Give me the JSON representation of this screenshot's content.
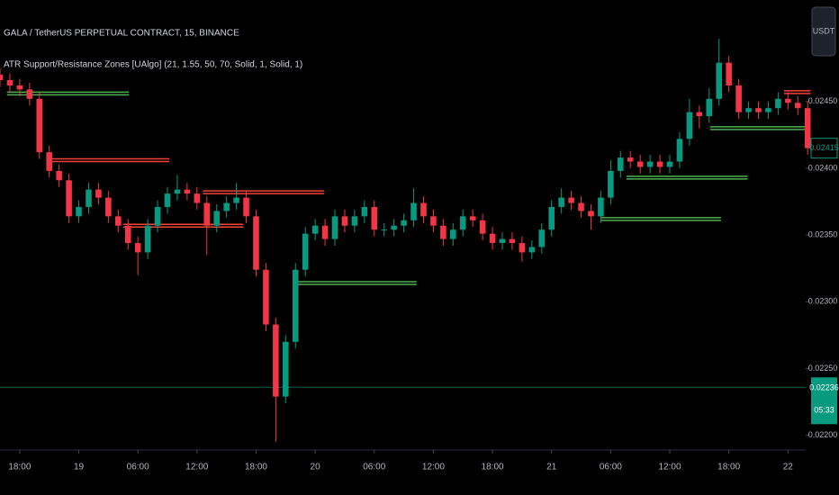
{
  "chart_data": {
    "type": "candlestick",
    "title": "GALA / TetherUS PERPETUAL CONTRACT, 15, BINANCE",
    "subtitle": "ATR Support/Resistance Zones [UAlgo] (21, 1.55, 50, 70, Solid, 1, Solid, 1)",
    "currency": "USDT",
    "up_color": "#089981",
    "down_color": "#f23645",
    "x": [
      -2,
      -1,
      0,
      1,
      2,
      3,
      4,
      5,
      6,
      7,
      8,
      9,
      10,
      11,
      12,
      13,
      14,
      15,
      16,
      17,
      18,
      19,
      20,
      21,
      22,
      23,
      24,
      25,
      26,
      27,
      28,
      29,
      30,
      31,
      32,
      33,
      34,
      35,
      36,
      37,
      38,
      39,
      40,
      41,
      42,
      43,
      44,
      45,
      46,
      47,
      48,
      49,
      50,
      51,
      52,
      53,
      54,
      55,
      56,
      57,
      58,
      59,
      60,
      61,
      62,
      63,
      64,
      65,
      66,
      67,
      68,
      69,
      70,
      71,
      72,
      73,
      74,
      75,
      76,
      77,
      78,
      79,
      80
    ],
    "open": [
      0.0247,
      0.02466,
      0.02462,
      0.02459,
      0.02452,
      0.02412,
      0.02398,
      0.02391,
      0.02364,
      0.02371,
      0.02384,
      0.02378,
      0.02364,
      0.02357,
      0.02344,
      0.02337,
      0.02357,
      0.02371,
      0.02381,
      0.02384,
      0.02381,
      0.02374,
      0.02357,
      0.02368,
      0.02374,
      0.02378,
      0.02364,
      0.02324,
      0.02283,
      0.02229,
      0.0227,
      0.02324,
      0.02351,
      0.02357,
      0.02347,
      0.02364,
      0.02357,
      0.02364,
      0.02371,
      0.02354,
      0.02354,
      0.02357,
      0.02361,
      0.02374,
      0.02364,
      0.02357,
      0.02347,
      0.02354,
      0.02364,
      0.02361,
      0.02351,
      0.02344,
      0.02347,
      0.02344,
      0.02337,
      0.02341,
      0.02354,
      0.02371,
      0.02378,
      0.02374,
      0.02368,
      0.02364,
      0.02378,
      0.02398,
      0.02408,
      0.02405,
      0.02401,
      0.02405,
      0.02401,
      0.02405,
      0.02422,
      0.02442,
      0.02439,
      0.02452,
      0.02479,
      0.02462,
      0.02442,
      0.02445,
      0.02442,
      0.02445,
      0.02452,
      0.02449,
      0.02445
    ],
    "high": [
      0.02475,
      0.02471,
      0.02467,
      0.02464,
      0.02457,
      0.02417,
      0.02403,
      0.02396,
      0.02376,
      0.02389,
      0.02389,
      0.02383,
      0.02369,
      0.02362,
      0.02349,
      0.02362,
      0.02376,
      0.02386,
      0.02395,
      0.02389,
      0.02386,
      0.02379,
      0.02373,
      0.02379,
      0.02389,
      0.02383,
      0.02369,
      0.02329,
      0.02288,
      0.02275,
      0.02329,
      0.02356,
      0.02362,
      0.02362,
      0.02369,
      0.02369,
      0.02369,
      0.02376,
      0.02376,
      0.02359,
      0.02362,
      0.02366,
      0.02385,
      0.02379,
      0.02369,
      0.02362,
      0.02359,
      0.02369,
      0.02369,
      0.02366,
      0.02356,
      0.02352,
      0.02352,
      0.02349,
      0.02346,
      0.02359,
      0.02376,
      0.02385,
      0.02383,
      0.02379,
      0.02373,
      0.02383,
      0.02406,
      0.02413,
      0.02413,
      0.0241,
      0.0241,
      0.0241,
      0.0241,
      0.02427,
      0.02452,
      0.02447,
      0.0246,
      0.02497,
      0.02484,
      0.02467,
      0.0245,
      0.0245,
      0.0245,
      0.02457,
      0.02457,
      0.02454,
      0.0245
    ],
    "low": [
      0.02461,
      0.02457,
      0.02454,
      0.02447,
      0.02407,
      0.02393,
      0.02386,
      0.02359,
      0.02359,
      0.02366,
      0.02373,
      0.02359,
      0.02352,
      0.02339,
      0.0232,
      0.02332,
      0.02352,
      0.02366,
      0.02376,
      0.02376,
      0.02369,
      0.02335,
      0.02352,
      0.02363,
      0.02369,
      0.02359,
      0.02319,
      0.02278,
      0.02195,
      0.02224,
      0.02265,
      0.02319,
      0.02346,
      0.02342,
      0.02342,
      0.02352,
      0.02352,
      0.02359,
      0.02349,
      0.02349,
      0.02349,
      0.02352,
      0.02356,
      0.02359,
      0.02352,
      0.02342,
      0.02342,
      0.02349,
      0.02356,
      0.02346,
      0.02339,
      0.02339,
      0.02339,
      0.0233,
      0.02332,
      0.02336,
      0.02349,
      0.02366,
      0.02369,
      0.02363,
      0.02354,
      0.02359,
      0.02373,
      0.02393,
      0.024,
      0.02396,
      0.02396,
      0.02396,
      0.02396,
      0.024,
      0.02417,
      0.0243,
      0.02434,
      0.02447,
      0.02457,
      0.02437,
      0.02437,
      0.02437,
      0.02437,
      0.0244,
      0.02444,
      0.0244,
      0.0241
    ],
    "close": [
      0.02466,
      0.02462,
      0.02459,
      0.02452,
      0.02412,
      0.02398,
      0.02391,
      0.02364,
      0.02371,
      0.02384,
      0.02378,
      0.02364,
      0.02357,
      0.02344,
      0.02337,
      0.02357,
      0.02371,
      0.02381,
      0.02384,
      0.02381,
      0.02374,
      0.02357,
      0.02368,
      0.02374,
      0.02378,
      0.02364,
      0.02324,
      0.02283,
      0.02229,
      0.0227,
      0.02324,
      0.02351,
      0.02357,
      0.02347,
      0.02364,
      0.02357,
      0.02364,
      0.02371,
      0.02354,
      0.02354,
      0.02357,
      0.02361,
      0.02374,
      0.02364,
      0.02357,
      0.02347,
      0.02354,
      0.02364,
      0.02361,
      0.02351,
      0.02344,
      0.02347,
      0.02344,
      0.02337,
      0.02341,
      0.02354,
      0.02371,
      0.02378,
      0.02374,
      0.02368,
      0.02364,
      0.02378,
      0.02398,
      0.02408,
      0.02405,
      0.02401,
      0.02405,
      0.02401,
      0.02405,
      0.02422,
      0.02442,
      0.02439,
      0.02452,
      0.02479,
      0.02462,
      0.02442,
      0.02445,
      0.02442,
      0.02445,
      0.02452,
      0.02449,
      0.02445,
      0.02415
    ],
    "zones": [
      {
        "price": 0.02456,
        "x0": -1.3,
        "x1": 11.1,
        "color": "#4caf50"
      },
      {
        "price": 0.02406,
        "x0": 2.7,
        "x1": 15.2,
        "color": "#f44336"
      },
      {
        "price": 0.02357,
        "x0": 10.5,
        "x1": 22.7,
        "color": "#f44336"
      },
      {
        "price": 0.02382,
        "x0": 18.6,
        "x1": 30.9,
        "color": "#f44336"
      },
      {
        "price": 0.02314,
        "x0": 27.9,
        "x1": 40.3,
        "color": "#4caf50"
      },
      {
        "price": 0.02362,
        "x0": 59,
        "x1": 71.2,
        "color": "#4caf50"
      },
      {
        "price": 0.02393,
        "x0": 61.6,
        "x1": 73.9,
        "color": "#4caf50"
      },
      {
        "price": 0.0243,
        "x0": 70.1,
        "x1": 80.3,
        "color": "#4caf50"
      },
      {
        "price": 0.02457,
        "x0": 77.6,
        "x1": 80.3,
        "color": "#f44336"
      }
    ],
    "last_price": 0.02415,
    "level_price": 0.02236,
    "countdown": "05:33",
    "xlim": [
      -2,
      79.8
    ],
    "ylim": [
      0.02189,
      0.02526
    ],
    "xticks": [
      {
        "value": 0,
        "label": "18:00"
      },
      {
        "value": 6,
        "label": "19"
      },
      {
        "value": 12,
        "label": "06:00"
      },
      {
        "value": 18,
        "label": "12:00"
      },
      {
        "value": 24,
        "label": "18:00"
      },
      {
        "value": 30,
        "label": "20"
      },
      {
        "value": 36,
        "label": "06:00"
      },
      {
        "value": 42,
        "label": "12:00"
      },
      {
        "value": 48,
        "label": "18:00"
      },
      {
        "value": 54,
        "label": "21"
      },
      {
        "value": 60,
        "label": "06:00"
      },
      {
        "value": 66,
        "label": "12:00"
      },
      {
        "value": 72,
        "label": "18:00"
      },
      {
        "value": 78,
        "label": "22"
      }
    ],
    "yticks": [
      {
        "value": 0.0245,
        "label": "0.02450"
      },
      {
        "value": 0.024,
        "label": "0.02400"
      },
      {
        "value": 0.0235,
        "label": "0.02350"
      },
      {
        "value": 0.023,
        "label": "0.02300"
      },
      {
        "value": 0.0225,
        "label": "0.02250"
      },
      {
        "value": 0.022,
        "label": "0.02200"
      }
    ]
  }
}
